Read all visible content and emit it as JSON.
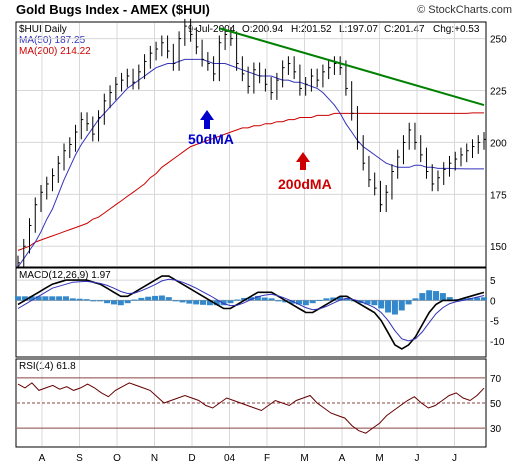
{
  "chart_data": {
    "type": "line",
    "title": "Gold Bugs Index - AMEX ($HUI)",
    "brand": "© StockCharts.com",
    "symbol": "$HUI Daily",
    "quote": {
      "date": "9-Jul-2004",
      "open_label": "O:200.94",
      "high_label": "H:201.52",
      "low_label": "L:197.07",
      "close_label": "C:201.47",
      "change_label": "Chg:+0.53"
    },
    "ma50_label": "MA(50) 187.25",
    "ma200_label": "MA(200) 214.22",
    "annotations": {
      "ma50": "50dMA",
      "ma200": "200dMA"
    },
    "colors": {
      "price": "#000000",
      "ma50": "#3333bb",
      "ma200": "#cc0000",
      "trendline": "#008000",
      "macd_hist": "#3388cc",
      "rsi": "#660000",
      "arrow_blue": "#0000cc",
      "arrow_red": "#cc0000"
    },
    "x_labels": [
      "A",
      "S",
      "O",
      "N",
      "D",
      "04",
      "F",
      "M",
      "A",
      "M",
      "J",
      "J"
    ],
    "price_panel": {
      "ylim": [
        140,
        258
      ],
      "ticks": [
        150,
        175,
        200,
        225,
        250
      ],
      "close": [
        142,
        150,
        160,
        170,
        176,
        180,
        184,
        190,
        196,
        199,
        205,
        211,
        209,
        204,
        212,
        220,
        224,
        228,
        230,
        232,
        229,
        234,
        239,
        243,
        245,
        248,
        244,
        238,
        250,
        256,
        252,
        246,
        240,
        238,
        233,
        248,
        252,
        250,
        238,
        233,
        227,
        235,
        232,
        228,
        224,
        230,
        236,
        238,
        234,
        226,
        228,
        232,
        230,
        234,
        236,
        238,
        236,
        226,
        214,
        200,
        190,
        182,
        178,
        170,
        176,
        186,
        193,
        200,
        206,
        200,
        194,
        186,
        180,
        183,
        187,
        190,
        192,
        194,
        196,
        198,
        200,
        201.47
      ],
      "ma50": [
        140,
        144,
        148,
        152,
        157,
        163,
        168,
        175,
        182,
        188,
        194,
        199,
        203,
        207,
        211,
        214,
        217,
        220,
        223,
        226,
        228,
        230,
        232,
        234,
        236,
        237,
        238,
        238,
        239,
        240,
        240,
        240,
        240,
        239,
        238,
        238,
        238,
        237,
        236,
        235,
        234,
        233,
        232,
        232,
        232,
        231,
        230,
        230,
        229,
        229,
        228,
        227,
        226,
        224,
        221,
        218,
        214,
        209,
        205,
        201,
        198,
        196,
        194,
        192,
        190,
        189,
        188,
        188,
        188,
        189,
        189,
        188,
        188,
        187.5,
        187.5,
        187.5,
        187.3,
        187.3,
        187.25,
        187.25,
        187.25,
        187.25
      ],
      "ma200": [
        148,
        149,
        150,
        152,
        153,
        154,
        155,
        156,
        157,
        158,
        159,
        160,
        161,
        163,
        164,
        166,
        168,
        170,
        172,
        174,
        176,
        178,
        180,
        183,
        185,
        188,
        190,
        192,
        194,
        196,
        198,
        199,
        200,
        201,
        202,
        203,
        204,
        205,
        206,
        207,
        207,
        208,
        208,
        209,
        209,
        210,
        210,
        211,
        211,
        212,
        212,
        212,
        213,
        213,
        213,
        214,
        214,
        214,
        214,
        214,
        214,
        214,
        214,
        214,
        214,
        214,
        214,
        214,
        214,
        214,
        214,
        214,
        214,
        214,
        214,
        214,
        214,
        214,
        214,
        214.2,
        214.2,
        214.22
      ],
      "trendline": [
        [
          35,
          255
        ],
        [
          81,
          218
        ]
      ]
    },
    "macd_panel": {
      "label": "MACD(12,26,9) 1.97",
      "ylim": [
        -14,
        8
      ],
      "ticks": [
        5,
        0,
        -5,
        -10
      ],
      "macd": [
        -1,
        0,
        1,
        2,
        3,
        4,
        4.5,
        5,
        5,
        5,
        5,
        4.5,
        4,
        3,
        2,
        1,
        1,
        2,
        3,
        4,
        5,
        6,
        6,
        5,
        4,
        3,
        2,
        1,
        0,
        -1,
        -2,
        -2,
        -1,
        0,
        1,
        2,
        2,
        2,
        1,
        0,
        -1,
        -2,
        -3,
        -3,
        -2,
        -1,
        0,
        1,
        1,
        0,
        -1,
        -2,
        -3,
        -5,
        -8,
        -11,
        -12,
        -11,
        -9,
        -6,
        -3,
        -1,
        0,
        0,
        0,
        0.5,
        1,
        1.5,
        1.97
      ],
      "signal": [
        -2,
        -1,
        0,
        1,
        2,
        3,
        3.5,
        4,
        4.5,
        4.6,
        4.7,
        4.5,
        4.2,
        3.7,
        3,
        2.2,
        1.7,
        1.8,
        2.4,
        3.1,
        3.9,
        4.8,
        5.2,
        5,
        4.5,
        3.8,
        3,
        2.1,
        1.2,
        0.2,
        -0.8,
        -1.3,
        -1.2,
        -0.6,
        0.2,
        0.9,
        1.3,
        1.5,
        1.1,
        0.5,
        -0.2,
        -1,
        -1.8,
        -2.3,
        -2.1,
        -1.5,
        -0.7,
        0.1,
        0.5,
        0.2,
        -0.3,
        -1,
        -1.8,
        -3,
        -5,
        -7.5,
        -9.5,
        -10,
        -9.5,
        -7.8,
        -5.5,
        -3.3,
        -1.8,
        -0.8,
        -0.3,
        0,
        0.4,
        0.8,
        1.2
      ]
    },
    "rsi_panel": {
      "label": "RSI(14) 61.8",
      "ylim": [
        15,
        85
      ],
      "ticks": [
        70,
        50,
        30
      ],
      "values": [
        65,
        62,
        66,
        60,
        62,
        64,
        61,
        63,
        60,
        62,
        65,
        62,
        58,
        55,
        60,
        63,
        66,
        64,
        62,
        60,
        55,
        50,
        52,
        54,
        56,
        54,
        52,
        48,
        46,
        50,
        54,
        52,
        50,
        48,
        46,
        44,
        48,
        52,
        50,
        48,
        52,
        54,
        56,
        50,
        46,
        42,
        40,
        38,
        32,
        28,
        26,
        30,
        34,
        40,
        44,
        48,
        52,
        55,
        50,
        46,
        48,
        52,
        56,
        58,
        54,
        52,
        56,
        61.8
      ]
    }
  }
}
